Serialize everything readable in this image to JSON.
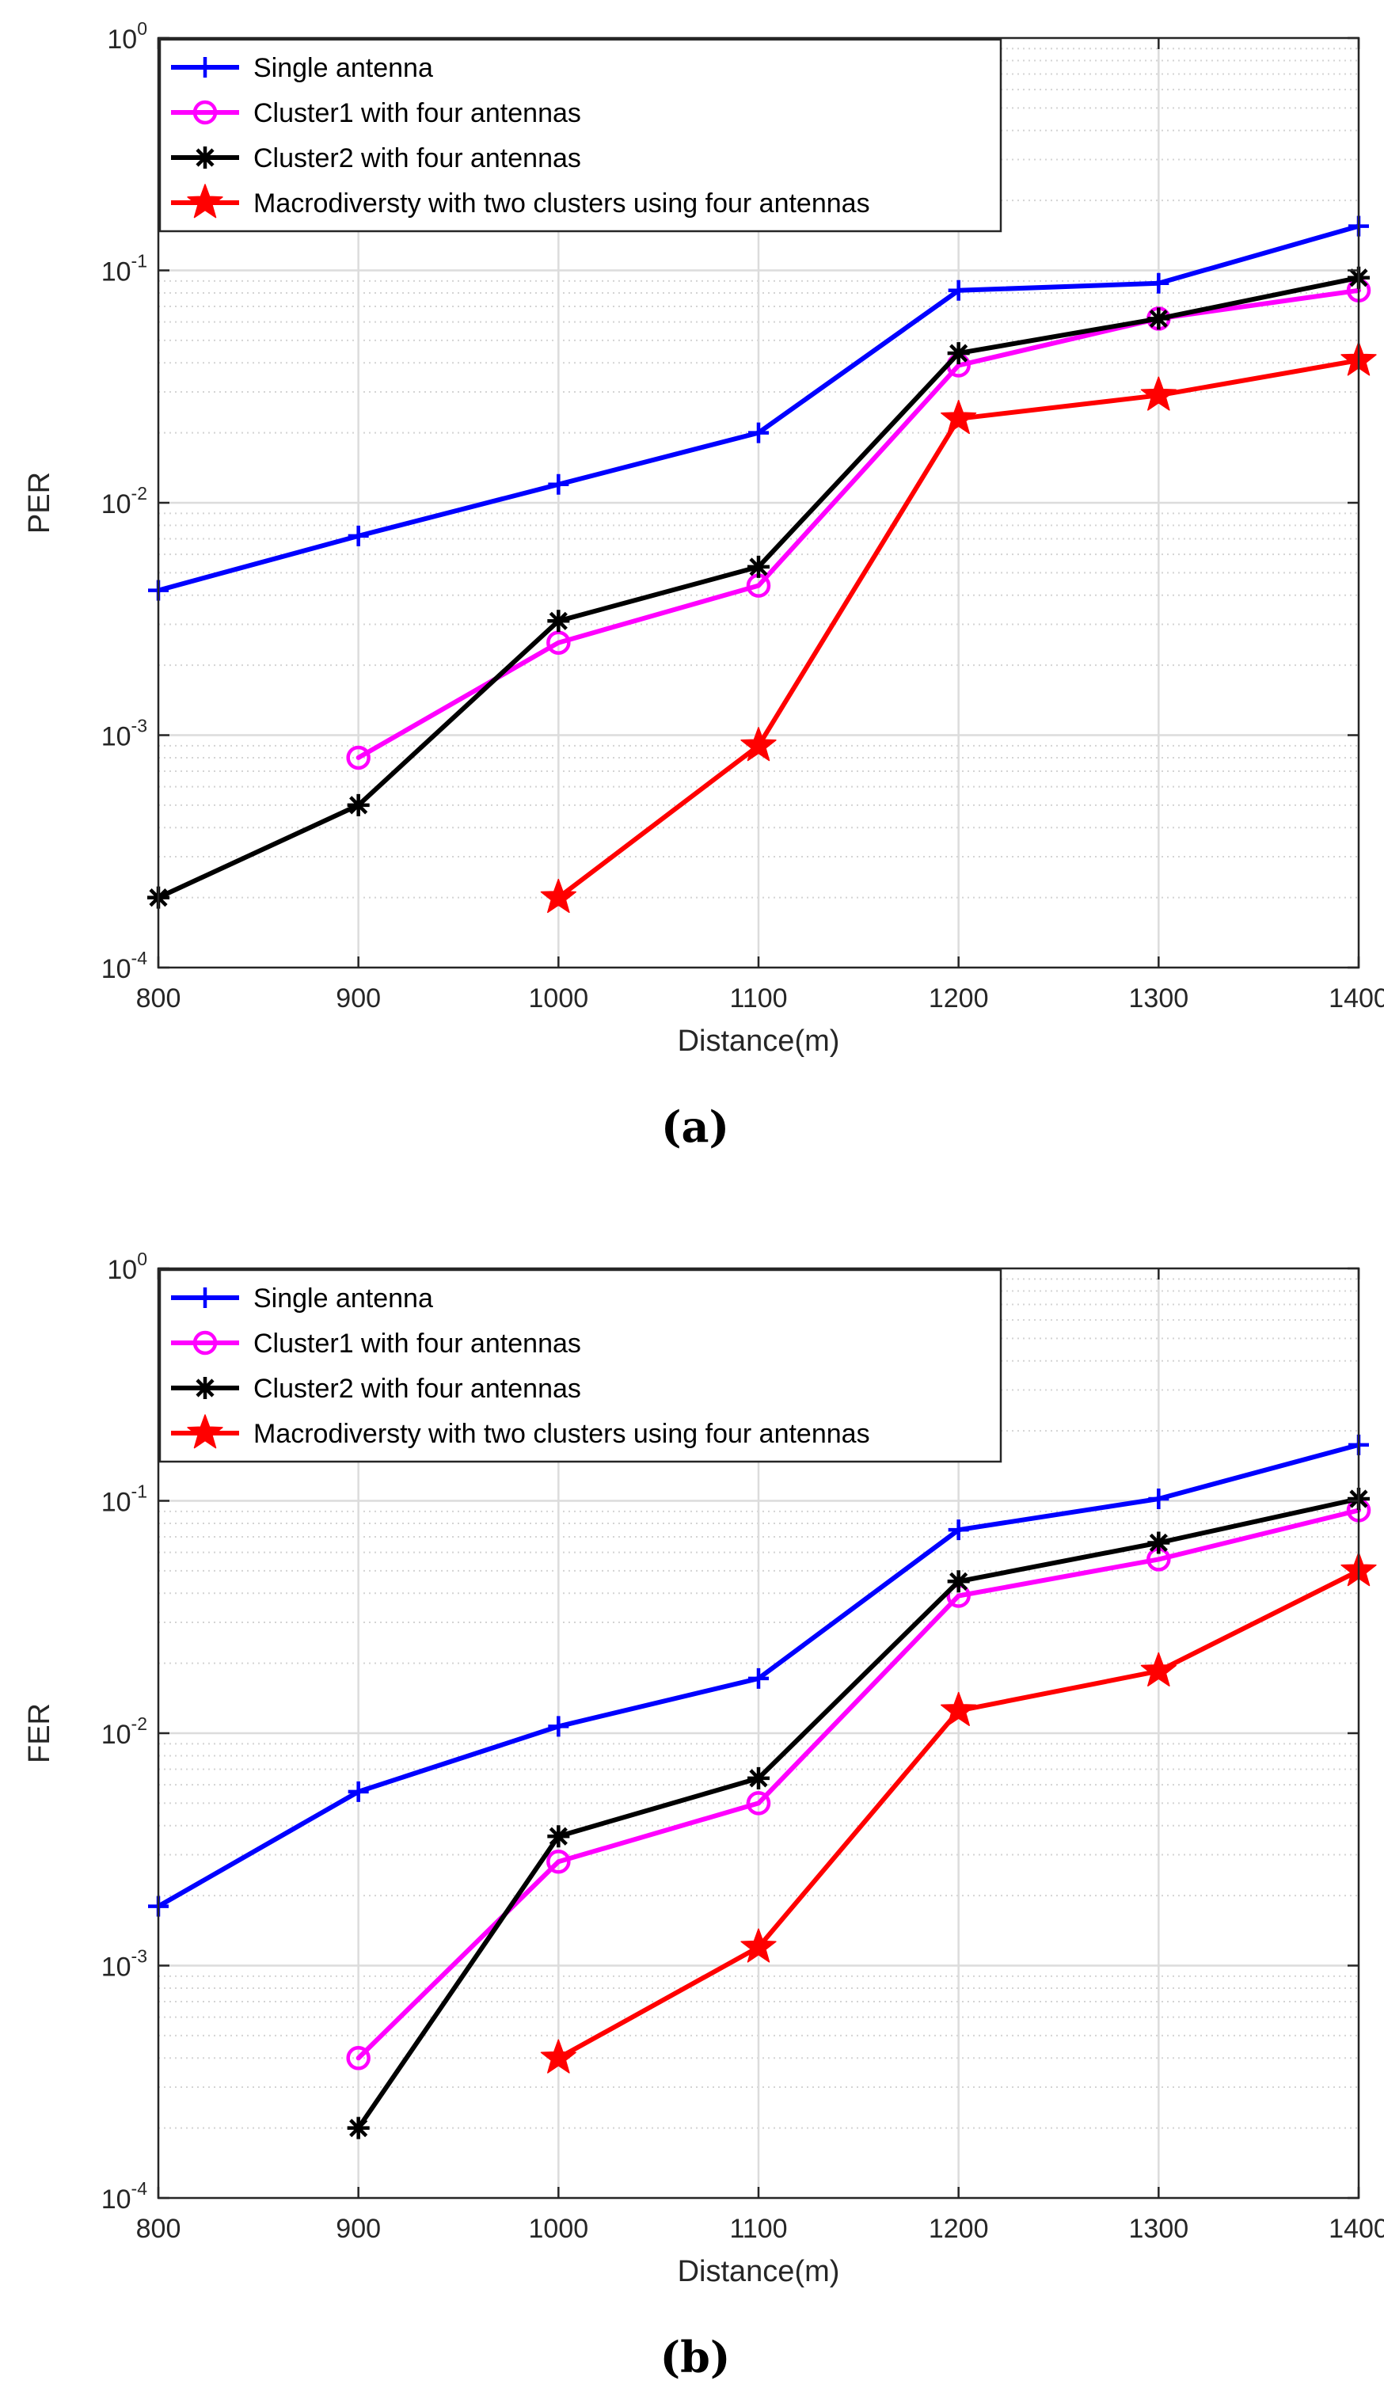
{
  "chart_data": [
    {
      "type": "line",
      "title": "",
      "caption": "(a)",
      "xlabel": "Distance(m)",
      "ylabel": "PER",
      "yscale": "log",
      "xlim": [
        800,
        1400
      ],
      "ylim": [
        0.0001,
        1
      ],
      "x_ticks": [
        "800",
        "900",
        "1000",
        "1100",
        "1200",
        "1300",
        "1400"
      ],
      "y_ticks": [
        {
          "base": "10",
          "exp": "0"
        },
        {
          "base": "10",
          "exp": "-1"
        },
        {
          "base": "10",
          "exp": "-2"
        },
        {
          "base": "10",
          "exp": "-3"
        },
        {
          "base": "10",
          "exp": "-4"
        }
      ],
      "grid": true,
      "legend_position": "top-left",
      "series": [
        {
          "name": "Single antenna",
          "color": "#0000FF",
          "marker": "plus",
          "x": [
            800,
            900,
            1000,
            1100,
            1200,
            1300,
            1400
          ],
          "values": [
            0.0042,
            0.0072,
            0.012,
            0.02,
            0.082,
            0.088,
            0.155
          ]
        },
        {
          "name": "Cluster1 with four antennas",
          "color": "#FF00FF",
          "marker": "circle",
          "x": [
            900,
            1000,
            1100,
            1200,
            1300,
            1400
          ],
          "values": [
            0.0008,
            0.0025,
            0.0044,
            0.039,
            0.062,
            0.082
          ]
        },
        {
          "name": "Cluster2 with four antennas",
          "color": "#000000",
          "marker": "asterisk",
          "x": [
            800,
            900,
            1000,
            1100,
            1200,
            1300,
            1400
          ],
          "values": [
            0.0002,
            0.0005,
            0.0031,
            0.0053,
            0.044,
            0.062,
            0.093
          ]
        },
        {
          "name": "Macrodiversty with two clusters using four antennas",
          "color": "#FF0000",
          "marker": "star",
          "x": [
            1000,
            1100,
            1200,
            1300,
            1400
          ],
          "values": [
            0.0002,
            0.0009,
            0.023,
            0.029,
            0.041
          ]
        }
      ]
    },
    {
      "type": "line",
      "title": "",
      "caption": "(b)",
      "xlabel": "Distance(m)",
      "ylabel": "FER",
      "yscale": "log",
      "xlim": [
        800,
        1400
      ],
      "ylim": [
        0.0001,
        1
      ],
      "x_ticks": [
        "800",
        "900",
        "1000",
        "1100",
        "1200",
        "1300",
        "1400"
      ],
      "y_ticks": [
        {
          "base": "10",
          "exp": "0"
        },
        {
          "base": "10",
          "exp": "-1"
        },
        {
          "base": "10",
          "exp": "-2"
        },
        {
          "base": "10",
          "exp": "-3"
        },
        {
          "base": "10",
          "exp": "-4"
        }
      ],
      "grid": true,
      "legend_position": "top-left",
      "series": [
        {
          "name": "Single antenna",
          "color": "#0000FF",
          "marker": "plus",
          "x": [
            800,
            900,
            1000,
            1100,
            1200,
            1300,
            1400
          ],
          "values": [
            0.0018,
            0.0056,
            0.0107,
            0.0172,
            0.075,
            0.102,
            0.174
          ]
        },
        {
          "name": "Cluster1 with four antennas",
          "color": "#FF00FF",
          "marker": "circle",
          "x": [
            900,
            1000,
            1100,
            1200,
            1300,
            1400
          ],
          "values": [
            0.0004,
            0.0028,
            0.005,
            0.039,
            0.056,
            0.091
          ]
        },
        {
          "name": "Cluster2 with four antennas",
          "color": "#000000",
          "marker": "asterisk",
          "x": [
            900,
            1000,
            1100,
            1200,
            1300,
            1400
          ],
          "values": [
            0.0002,
            0.0036,
            0.0064,
            0.045,
            0.066,
            0.102
          ]
        },
        {
          "name": "Macrodiversty with two clusters using four antennas",
          "color": "#FF0000",
          "marker": "star",
          "x": [
            1000,
            1100,
            1200,
            1300,
            1400
          ],
          "values": [
            0.0004,
            0.0012,
            0.0125,
            0.0185,
            0.05
          ]
        }
      ]
    }
  ]
}
